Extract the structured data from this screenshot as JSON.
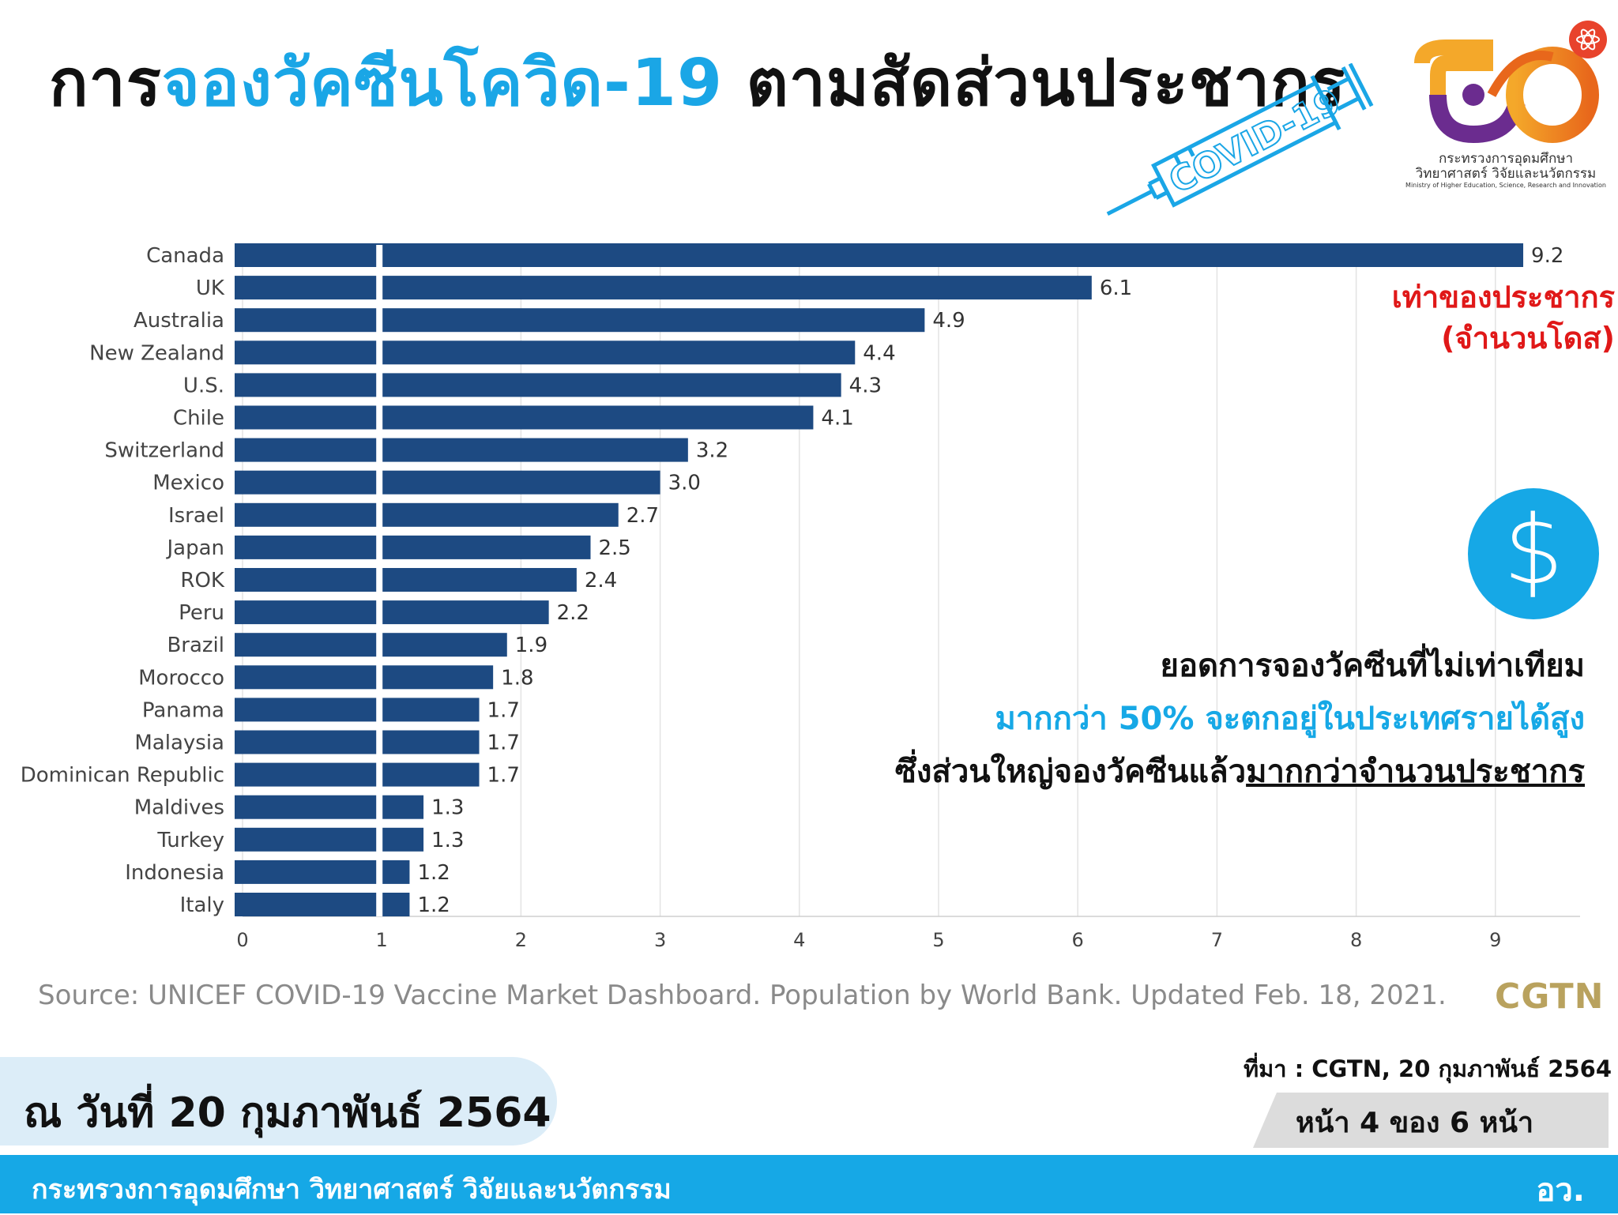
{
  "header": {
    "title_part1": "การ",
    "title_part2": "จองวัคซีนโควิด-19",
    "title_part3": " ตามสัดส่วนประชากร",
    "highlight_color": "#1aa6e6"
  },
  "badge": {
    "text": "COVID-19"
  },
  "logo": {
    "ministry_th": "กระทรวงการอุดมศึกษา",
    "ministry_th2": "วิทยาศาสตร์ วิจัยและนวัตกรรม",
    "ministry_en": "Ministry of Higher Education, Science, Research and Innovation"
  },
  "unit_label": {
    "line1": "เท่าของประชากร",
    "line2": "(จำนวนโดส)",
    "color": "#e01818"
  },
  "note": {
    "line1": "ยอดการจองวัคซีนที่ไม่เท่าเทียม",
    "line2": "มากกว่า 50% จะตกอยู่ในประเทศรายได้สูง",
    "line3_plain": "ซึ่งส่วนใหญ่จองวัคซีนแล้ว",
    "line3_underlined": "มากกว่าจำนวนประชากร"
  },
  "dollar_icon": "dollar-icon",
  "source": {
    "text": "Source: UNICEF COVID-19 Vaccine Market Dashboard. Population by World Bank. Updated Feb. 18, 2021.",
    "brand": "CGTN"
  },
  "date": "ณ วันที่ 20 กุมภาพันธ์ 2564",
  "credit": "ที่มา : CGTN, 20 กุมภาพันธ์ 2564",
  "page": "หน้า 4 ของ 6 หน้า",
  "footer": {
    "left": "กระทรวงการอุดมศึกษา วิทยาศาสตร์ วิจัยและนวัตกรรม",
    "right": "อว."
  },
  "chart_data": {
    "type": "bar",
    "orientation": "horizontal",
    "title": "",
    "xlabel": "",
    "ylabel": "",
    "xlim": [
      0,
      9.5
    ],
    "xticks": [
      0,
      1,
      2,
      3,
      4,
      5,
      6,
      7,
      8,
      9
    ],
    "reference_line": 1,
    "bar_color": "#1d4a82",
    "categories": [
      "Canada",
      "UK",
      "Australia",
      "New Zealand",
      "U.S.",
      "Chile",
      "Switzerland",
      "Mexico",
      "Israel",
      "Japan",
      "ROK",
      "Peru",
      "Brazil",
      "Morocco",
      "Panama",
      "Malaysia",
      "Dominican Republic",
      "Maldives",
      "Turkey",
      "Indonesia",
      "Italy"
    ],
    "values": [
      9.2,
      6.1,
      4.9,
      4.4,
      4.3,
      4.1,
      3.2,
      3.0,
      2.7,
      2.5,
      2.4,
      2.2,
      1.9,
      1.8,
      1.7,
      1.7,
      1.7,
      1.3,
      1.3,
      1.2,
      1.2
    ],
    "value_labels": [
      "9.2",
      "6.1",
      "4.9",
      "4.4",
      "4.3",
      "4.1",
      "3.2",
      "3.0",
      "2.7",
      "2.5",
      "2.4",
      "2.2",
      "1.9",
      "1.8",
      "1.7",
      "1.7",
      "1.7",
      "1.3",
      "1.3",
      "1.2",
      "1.2"
    ]
  }
}
